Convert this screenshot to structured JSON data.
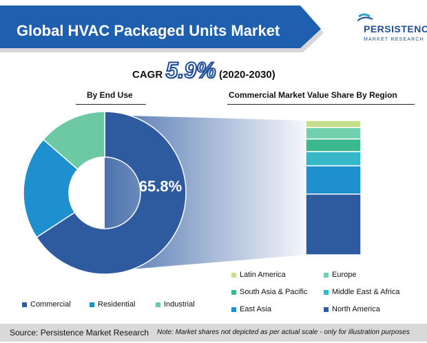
{
  "title": "Global HVAC Packaged Units Market",
  "logo": {
    "name": "PERSISTENCE",
    "sub": "MARKET RESEARCH"
  },
  "cagr": {
    "label": "CAGR",
    "value": "5.9%",
    "period": "(2020-2030)"
  },
  "colors": {
    "banner": "#1f5faf",
    "commercial": "#2e5aa0",
    "residential": "#1e90d0",
    "industrial": "#6cc9a3",
    "north_america": "#2e5aa0",
    "east_asia": "#1e90d0",
    "middle_east_africa": "#37b7c8",
    "south_asia_pacific": "#3bb88f",
    "europe": "#71cfae",
    "latin_america": "#c5e08d"
  },
  "chart_data": [
    {
      "type": "pie",
      "title": "By End Use",
      "center_label": "65.8%",
      "categories": [
        "Commercial",
        "Residential",
        "Industrial"
      ],
      "values": [
        65.8,
        20.6,
        13.6
      ],
      "donut": true
    },
    {
      "type": "bar",
      "stacked": true,
      "title": "Commercial Market Value Share By Region",
      "categories": [
        "North America",
        "East Asia",
        "Middle East & Africa",
        "South Asia & Pacific",
        "Europe",
        "Latin America"
      ],
      "values": [
        43,
        20,
        10,
        9,
        8,
        5
      ]
    }
  ],
  "legend_end_use": [
    "Commercial",
    "Residential",
    "Industrial"
  ],
  "legend_region": [
    "Latin America",
    "Europe",
    "South Asia & Pacific",
    "Middle East & Africa",
    "East Asia",
    "North America"
  ],
  "footer": {
    "source": "Source: Persistence Market Research",
    "note": "Note: Market shares not depicted as per actual scale - only for illustration purposes"
  }
}
